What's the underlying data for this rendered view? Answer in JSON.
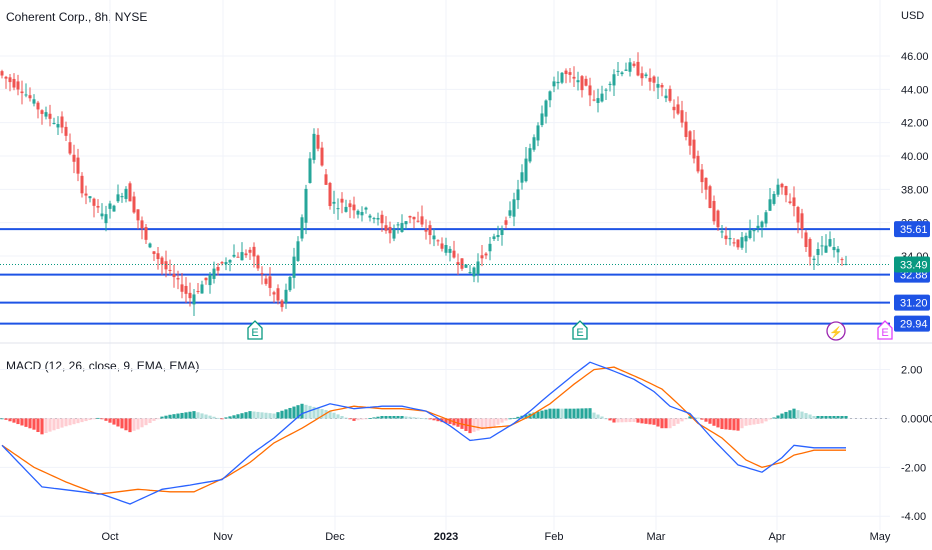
{
  "header": {
    "title": "Coherent Corp., 8h, NYSE",
    "currency": "USD"
  },
  "macd_header": {
    "title": "MACD (12, 26, close, 9, EMA, EMA)"
  },
  "colors": {
    "up": "#26a69a",
    "down": "#ef5350",
    "level_line": "#1e53e5",
    "macd_line": "#2962ff",
    "signal_line": "#ff6d00",
    "hist_up_strong": "#26a69a",
    "hist_up_weak": "#b2dfdb",
    "hist_down_strong": "#ff5252",
    "hist_down_weak": "#ffcdd2",
    "price_tag": "#089981",
    "earnings": "#089981",
    "earnings_future": "#e040fb",
    "dividend": "#9c27b0"
  },
  "chart_data": [
    {
      "type": "candlestick",
      "title": "Coherent Corp., 8h, NYSE",
      "ylabel": "USD",
      "ylim": [
        29.2,
        47.2
      ],
      "y_ticks": [
        "46.00",
        "44.00",
        "42.00",
        "40.00",
        "38.00",
        "36.00",
        "34.00"
      ],
      "x_ticks": [
        "Oct",
        "Nov",
        "Dec",
        "2023",
        "Feb",
        "Mar",
        "Apr",
        "May"
      ],
      "last_price": "33.49",
      "horizontal_levels": [
        "35.61",
        "32.88",
        "31.20",
        "29.94"
      ],
      "events": [
        {
          "kind": "earnings",
          "label": "E",
          "date": "Nov"
        },
        {
          "kind": "earnings",
          "label": "E",
          "date": "Feb"
        },
        {
          "kind": "dividend",
          "label": "⚡",
          "date": "Apr"
        },
        {
          "kind": "earnings-future",
          "label": "E",
          "date": "May"
        }
      ],
      "anchors": [
        [
          0,
          44.8
        ],
        [
          5,
          44.0
        ],
        [
          10,
          42.6
        ],
        [
          15,
          41.8
        ],
        [
          20,
          38.0
        ],
        [
          25,
          36.4
        ],
        [
          31,
          38.1
        ],
        [
          36,
          34.9
        ],
        [
          41,
          33.2
        ],
        [
          47,
          31.5
        ],
        [
          52,
          32.8
        ],
        [
          57,
          34.0
        ],
        [
          62,
          34.2
        ],
        [
          66,
          32.4
        ],
        [
          70,
          30.9
        ],
        [
          74,
          34.7
        ],
        [
          78,
          41.5
        ],
        [
          82,
          37.2
        ],
        [
          87,
          37.0
        ],
        [
          92,
          36.6
        ],
        [
          97,
          35.4
        ],
        [
          102,
          36.4
        ],
        [
          107,
          35.3
        ],
        [
          112,
          34.2
        ],
        [
          117,
          33.0
        ],
        [
          122,
          34.6
        ],
        [
          127,
          36.5
        ],
        [
          132,
          40.5
        ],
        [
          136,
          43.5
        ],
        [
          140,
          45.0
        ],
        [
          145,
          44.2
        ],
        [
          149,
          43.3
        ],
        [
          153,
          45.0
        ],
        [
          157,
          45.4
        ],
        [
          162,
          44.5
        ],
        [
          166,
          43.7
        ],
        [
          170,
          42.0
        ],
        [
          174,
          39.2
        ],
        [
          179,
          35.6
        ],
        [
          184,
          34.7
        ],
        [
          189,
          35.7
        ],
        [
          194,
          38.2
        ],
        [
          198,
          37.0
        ],
        [
          202,
          33.9
        ],
        [
          207,
          34.8
        ],
        [
          211,
          33.6
        ]
      ]
    },
    {
      "type": "macd",
      "title": "MACD (12, 26, close, 9, EMA, EMA)",
      "ylim": [
        -4.4,
        2.8
      ],
      "y_ticks": [
        "2.00",
        "0.0000",
        "-2.00",
        "-4.00"
      ],
      "series": [
        {
          "name": "MACD",
          "anchors": [
            [
              0,
              -1.1
            ],
            [
              10,
              -2.8
            ],
            [
              25,
              -3.1
            ],
            [
              32,
              -3.5
            ],
            [
              40,
              -2.9
            ],
            [
              48,
              -2.7
            ],
            [
              55,
              -2.5
            ],
            [
              62,
              -1.5
            ],
            [
              68,
              -0.8
            ],
            [
              75,
              0.2
            ],
            [
              82,
              0.6
            ],
            [
              88,
              0.4
            ],
            [
              95,
              0.5
            ],
            [
              100,
              0.5
            ],
            [
              106,
              0.3
            ],
            [
              112,
              -0.3
            ],
            [
              117,
              -0.9
            ],
            [
              122,
              -0.8
            ],
            [
              128,
              -0.2
            ],
            [
              132,
              0.3
            ],
            [
              137,
              1.0
            ],
            [
              143,
              1.8
            ],
            [
              147,
              2.3
            ],
            [
              152,
              2.0
            ],
            [
              158,
              1.6
            ],
            [
              163,
              1.1
            ],
            [
              167,
              0.5
            ],
            [
              172,
              0.2
            ],
            [
              178,
              -0.9
            ],
            [
              184,
              -1.9
            ],
            [
              190,
              -2.2
            ],
            [
              195,
              -1.6
            ],
            [
              198,
              -1.1
            ],
            [
              203,
              -1.2
            ],
            [
              211,
              -1.2
            ]
          ]
        },
        {
          "name": "Signal",
          "anchors": [
            [
              0,
              -1.1
            ],
            [
              8,
              -2.0
            ],
            [
              16,
              -2.6
            ],
            [
              24,
              -3.1
            ],
            [
              34,
              -2.9
            ],
            [
              42,
              -3.0
            ],
            [
              48,
              -3.0
            ],
            [
              56,
              -2.4
            ],
            [
              62,
              -1.8
            ],
            [
              68,
              -1.0
            ],
            [
              75,
              -0.4
            ],
            [
              82,
              0.3
            ],
            [
              88,
              0.5
            ],
            [
              95,
              0.4
            ],
            [
              100,
              0.4
            ],
            [
              106,
              0.3
            ],
            [
              114,
              -0.2
            ],
            [
              120,
              -0.4
            ],
            [
              127,
              -0.3
            ],
            [
              132,
              0.1
            ],
            [
              137,
              0.6
            ],
            [
              143,
              1.4
            ],
            [
              148,
              2.0
            ],
            [
              153,
              2.1
            ],
            [
              160,
              1.6
            ],
            [
              165,
              1.2
            ],
            [
              169,
              0.6
            ],
            [
              174,
              -0.2
            ],
            [
              180,
              -0.8
            ],
            [
              186,
              -1.7
            ],
            [
              190,
              -2.0
            ],
            [
              195,
              -1.8
            ],
            [
              198,
              -1.5
            ],
            [
              203,
              -1.3
            ],
            [
              211,
              -1.3
            ]
          ]
        }
      ]
    }
  ]
}
